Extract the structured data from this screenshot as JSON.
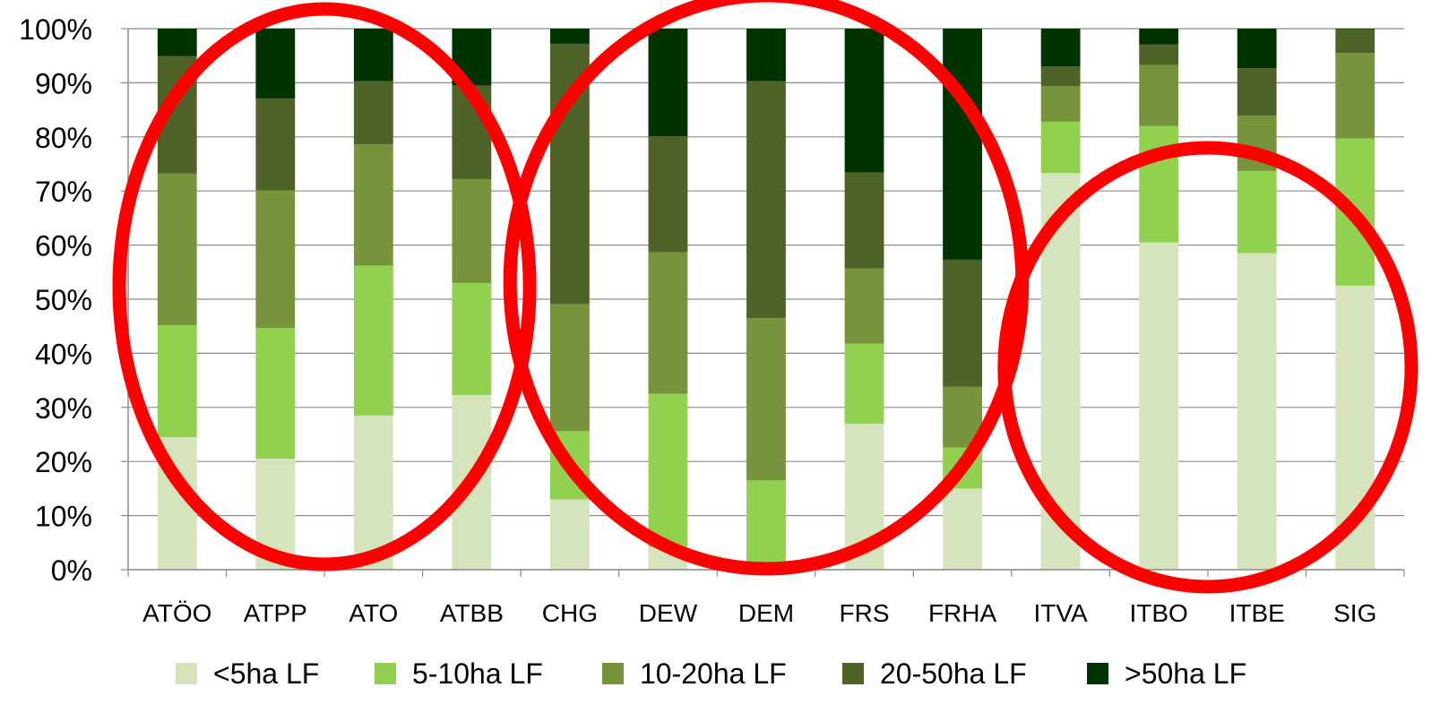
{
  "chart_data": {
    "type": "bar",
    "stacked": true,
    "percent_stacked": true,
    "categories": [
      "ATÖO",
      "ATPP",
      "ATO",
      "ATBB",
      "CHG",
      "DEW",
      "DEM",
      "FRS",
      "FRHA",
      "ITVA",
      "ITBO",
      "ITBE",
      "SIG"
    ],
    "series": [
      {
        "name": "<5ha LF",
        "color": "#d6e4bd",
        "values": [
          24.5,
          20.5,
          28.5,
          32.3,
          13.0,
          4.2,
          0.0,
          27.0,
          15.0,
          73.3,
          60.5,
          58.5,
          52.5
        ]
      },
      {
        "name": "5-10ha LF",
        "color": "#92d050",
        "values": [
          20.7,
          24.2,
          27.7,
          20.7,
          12.6,
          28.3,
          16.5,
          14.8,
          7.6,
          9.5,
          21.5,
          15.2,
          27.2
        ]
      },
      {
        "name": "10-20ha LF",
        "color": "#77933c",
        "values": [
          28.0,
          25.4,
          22.4,
          19.2,
          23.5,
          26.2,
          30.0,
          13.9,
          11.2,
          6.6,
          11.3,
          10.2,
          15.8
        ]
      },
      {
        "name": "20-50ha LF",
        "color": "#4f6228",
        "values": [
          21.7,
          17.0,
          11.7,
          17.3,
          48.1,
          21.4,
          43.8,
          17.7,
          23.5,
          3.6,
          3.8,
          8.8,
          4.4
        ]
      },
      {
        "name": ">50ha LF",
        "color": "#003300",
        "values": [
          5.1,
          12.9,
          9.7,
          10.5,
          2.8,
          19.9,
          9.7,
          26.6,
          42.7,
          7.0,
          2.9,
          7.3,
          0.1
        ]
      }
    ],
    "ylim": [
      0,
      100
    ],
    "yticks": [
      "0%",
      "10%",
      "20%",
      "30%",
      "40%",
      "50%",
      "60%",
      "70%",
      "80%",
      "90%",
      "100%"
    ],
    "grid": true,
    "legend": "bottom",
    "title": "",
    "xlabel": "",
    "ylabel": "",
    "annotations": [
      {
        "type": "ellipse",
        "color": "#ff0000",
        "groups": [
          "ATÖO",
          "ATPP",
          "ATO",
          "ATBB"
        ]
      },
      {
        "type": "ellipse",
        "color": "#ff0000",
        "groups": [
          "CHG",
          "DEW",
          "DEM",
          "FRS",
          "FRHA"
        ]
      },
      {
        "type": "ellipse",
        "color": "#ff0000",
        "groups": [
          "ITVA",
          "ITBO",
          "ITBE",
          "SIG"
        ]
      }
    ]
  }
}
